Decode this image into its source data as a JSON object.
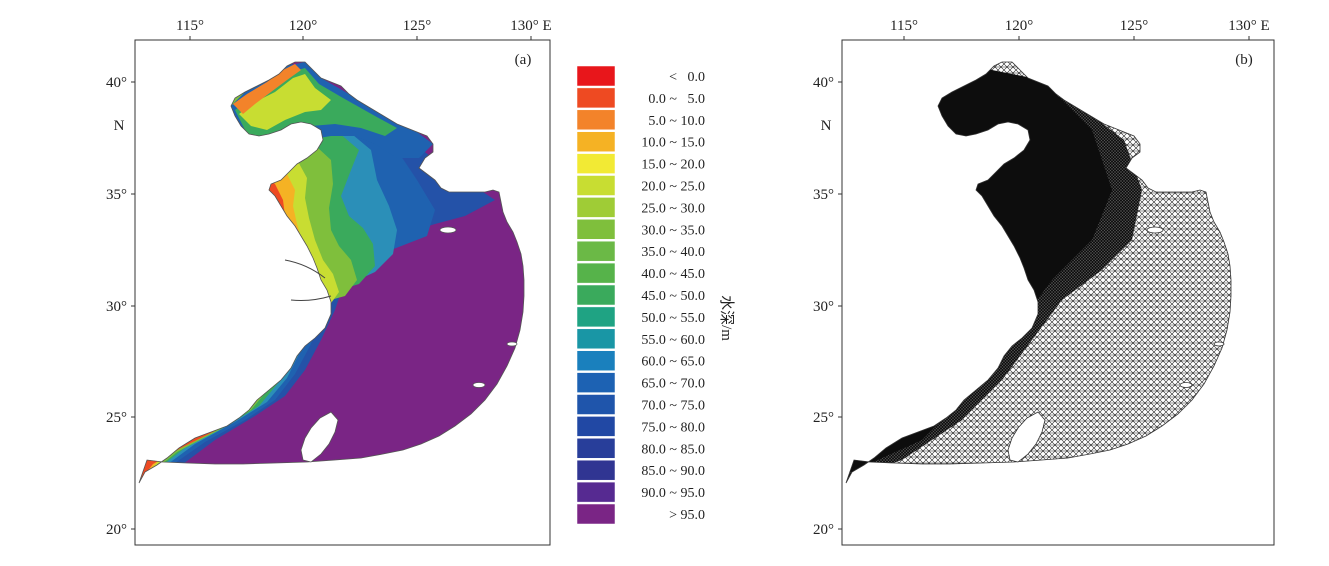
{
  "panels": [
    {
      "id": "a",
      "label": "(a)",
      "lon_ticks": [
        "115°",
        "120°",
        "125°",
        "130° E"
      ],
      "lat_ticks": [
        "40°",
        "35°",
        "30°",
        "25°",
        "20°"
      ],
      "lat_unit": "N",
      "content": "bathymetry"
    },
    {
      "id": "b",
      "label": "(b)",
      "lon_ticks": [
        "115°",
        "120°",
        "125°",
        "130° E"
      ],
      "lat_ticks": [
        "40°",
        "35°",
        "30°",
        "25°",
        "20°"
      ],
      "lat_unit": "N",
      "content": "mesh"
    }
  ],
  "legend": {
    "unit": "水深/m",
    "entries": [
      {
        "label": "<   0.0",
        "color": "#e8161b"
      },
      {
        "label": "0.0 ~   5.0",
        "color": "#ee4a22"
      },
      {
        "label": "5.0 ~ 10.0",
        "color": "#f3832a"
      },
      {
        "label": "10.0 ~ 15.0",
        "color": "#f5b224"
      },
      {
        "label": "15.0 ~ 20.0",
        "color": "#f2ea34"
      },
      {
        "label": "20.0 ~ 25.0",
        "color": "#c8dd32"
      },
      {
        "label": "25.0 ~ 30.0",
        "color": "#9fcc36"
      },
      {
        "label": "30.0 ~ 35.0",
        "color": "#7fbf3c"
      },
      {
        "label": "35.0 ~ 40.0",
        "color": "#6bb946"
      },
      {
        "label": "40.0 ~ 45.0",
        "color": "#56b34a"
      },
      {
        "label": "45.0 ~ 50.0",
        "color": "#3aaa5c"
      },
      {
        "label": "50.0 ~ 55.0",
        "color": "#1fa383"
      },
      {
        "label": "55.0 ~ 60.0",
        "color": "#1996a5"
      },
      {
        "label": "60.0 ~ 65.0",
        "color": "#1a80bd"
      },
      {
        "label": "65.0 ~ 70.0",
        "color": "#1d62b3"
      },
      {
        "label": "70.0 ~ 75.0",
        "color": "#1f55ab"
      },
      {
        "label": "75.0 ~ 80.0",
        "color": "#2148a4"
      },
      {
        "label": "80.0 ~ 85.0",
        "color": "#283e9a"
      },
      {
        "label": "85.0 ~ 90.0",
        "color": "#303592"
      },
      {
        "label": "90.0 ~ 95.0",
        "color": "#562a91"
      },
      {
        "label": "> 95.0",
        "color": "#7a2585"
      }
    ]
  }
}
